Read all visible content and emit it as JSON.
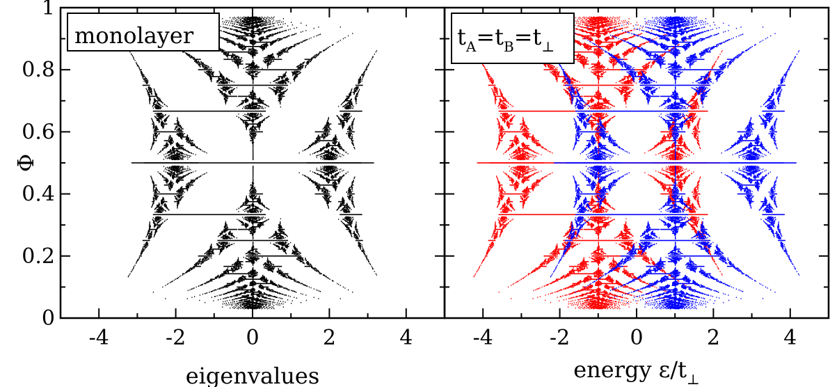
{
  "chart_data": [
    {
      "type": "scatter",
      "title": "",
      "legend_label": "monolayer",
      "xlabel": "eigenvalues",
      "ylabel": "Φ",
      "xlim": [
        -5,
        5
      ],
      "ylim": [
        0,
        1
      ],
      "xticks": [
        "-4",
        "-2",
        "0",
        "2",
        "4"
      ],
      "yticks": [
        "0",
        "0.2",
        "0.4",
        "0.6",
        "0.8",
        "1"
      ],
      "series": [
        {
          "color": "#000000",
          "t": 1.0,
          "offset": 0,
          "bandwidth": 3.9
        }
      ],
      "flux_q": 60,
      "flux_range": [
        0.033,
        0.967
      ]
    },
    {
      "type": "scatter",
      "title": "",
      "legend_label": {
        "t": "t",
        "sa": "A",
        "eq1": "=t",
        "sb": "B",
        "eq2": "=t",
        "sperp": "⊥"
      },
      "xlabel": {
        "main": "energy ε/t",
        "sub": "⊥"
      },
      "ylabel": "",
      "xlim": [
        -5,
        5
      ],
      "ylim": [
        0,
        1
      ],
      "xticks": [
        "-4",
        "-2",
        "0",
        "2",
        "4"
      ],
      "yticks": [
        "0",
        "0.2",
        "0.4",
        "0.6",
        "0.8",
        "1"
      ],
      "series": [
        {
          "color": "#ff0000",
          "t": 1.0,
          "offset": -1,
          "bandwidth": 3.9
        },
        {
          "color": "#0000ff",
          "t": 1.0,
          "offset": 1,
          "bandwidth": 3.9
        }
      ],
      "flux_q": 60,
      "flux_range": [
        0.033,
        0.967
      ]
    }
  ]
}
